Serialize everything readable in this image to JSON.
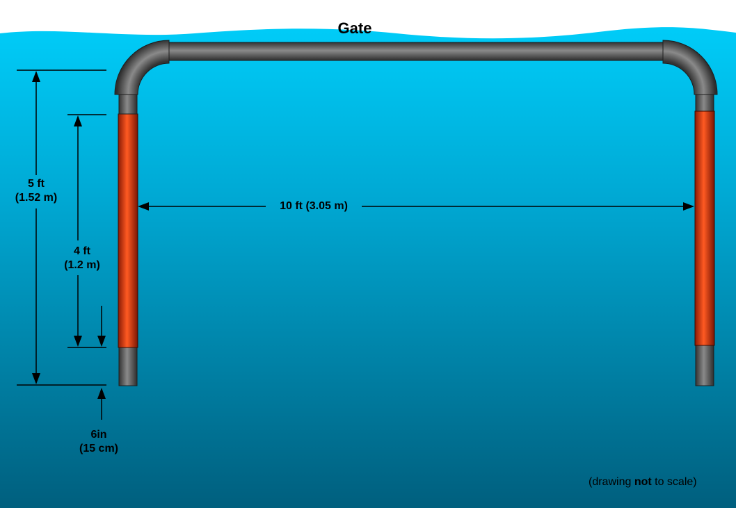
{
  "title": "Gate",
  "dimensions": {
    "total_height": {
      "value": "5 ft",
      "metric": "(1.52 m)"
    },
    "band_height": {
      "value": "4 ft",
      "metric": "(1.2 m)"
    },
    "width": {
      "text": "10 ft (3.05 m)"
    },
    "clearance": {
      "value": "6in",
      "metric": "(15 cm)"
    }
  },
  "note": {
    "prefix": "(drawing ",
    "emphasis": "not",
    "suffix": " to scale)"
  },
  "colors": {
    "water_top": "#00c8f5",
    "water_bottom": "#006a88",
    "pipe": "#555555",
    "band": "#d9421c",
    "sky": "#ffffff"
  },
  "icons": [
    "arrow-up-icon",
    "arrow-down-icon",
    "arrow-left-icon",
    "arrow-right-icon"
  ]
}
